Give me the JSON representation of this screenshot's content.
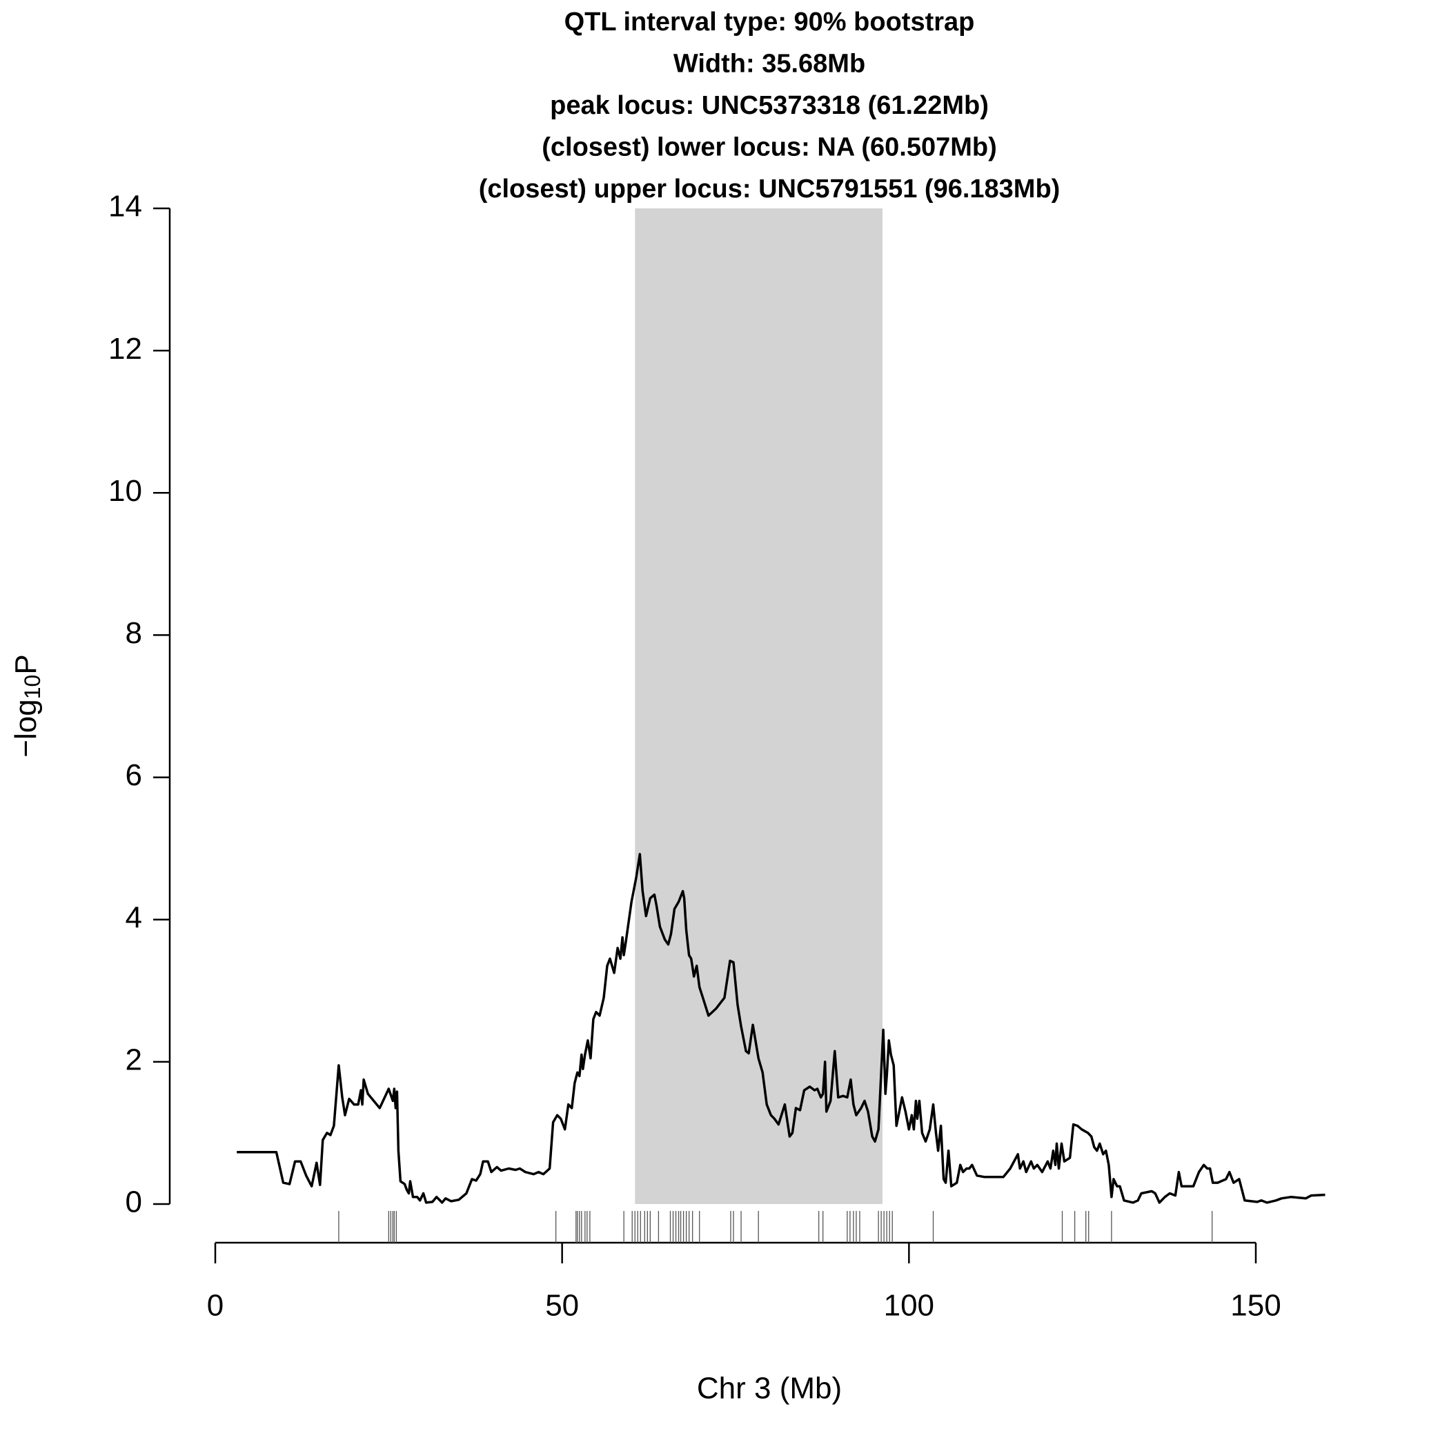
{
  "chart_data": {
    "type": "line",
    "title_lines": [
      "QTL interval type: 90% bootstrap",
      "Width: 35.68Mb",
      "peak locus: UNC5373318 (61.22Mb)",
      "(closest) lower locus: NA (60.507Mb)",
      "(closest) upper locus: UNC5791551 (96.183Mb)"
    ],
    "xlabel": "Chr 3 (Mb)",
    "ylabel": [
      "−log",
      "10",
      "P"
    ],
    "xlim": [
      0,
      150
    ],
    "ylim": [
      0,
      14
    ],
    "xticks": [
      0,
      50,
      100,
      150
    ],
    "yticks": [
      0,
      2,
      4,
      6,
      8,
      10,
      12,
      14
    ],
    "interval": [
      60.507,
      96.183
    ],
    "interval_color": "#d3d3d3",
    "color": "#000000",
    "x": [
      3.1,
      8.8,
      9.8,
      10.7,
      11.5,
      12.3,
      13.1,
      13.9,
      14.6,
      15.1,
      15.5,
      16.1,
      16.6,
      17.1,
      17.8,
      18.3,
      18.7,
      19.3,
      20.0,
      20.6,
      21.0,
      21.2,
      21.4,
      22.0,
      23.7,
      25.0,
      25.6,
      25.8,
      26.0,
      26.2,
      26.4,
      26.7,
      27.3,
      27.6,
      27.9,
      28.1,
      28.5,
      29.1,
      29.5,
      30.0,
      30.4,
      31.3,
      31.9,
      32.7,
      33.2,
      34.0,
      35.1,
      36.2,
      37.0,
      37.6,
      38.2,
      38.6,
      39.3,
      39.8,
      40.6,
      41.2,
      42.3,
      43.3,
      43.9,
      44.7,
      45.9,
      46.6,
      47.3,
      48.2,
      48.7,
      49.3,
      49.8,
      50.4,
      50.9,
      51.4,
      51.8,
      52.2,
      52.5,
      52.8,
      53.0,
      53.3,
      53.7,
      54.1,
      54.5,
      54.9,
      55.4,
      56.0,
      56.5,
      56.9,
      57.5,
      58.0,
      58.4,
      58.7,
      58.9,
      59.2,
      60.0,
      60.7,
      61.2,
      61.6,
      62.1,
      62.7,
      63.3,
      63.6,
      64.1,
      64.8,
      65.3,
      65.7,
      66.2,
      66.8,
      67.4,
      67.6,
      67.9,
      68.3,
      68.6,
      69.0,
      69.4,
      69.8,
      70.3,
      71.1,
      72.2,
      73.0,
      73.4,
      74.2,
      74.7,
      75.3,
      75.8,
      76.5,
      76.9,
      77.5,
      78.3,
      78.9,
      79.5,
      80.1,
      80.6,
      81.2,
      82.1,
      82.8,
      83.2,
      83.7,
      84.3,
      84.9,
      85.7,
      86.4,
      86.8,
      87.3,
      87.6,
      87.9,
      88.1,
      88.7,
      89.3,
      89.8,
      90.5,
      91.1,
      91.6,
      92.0,
      92.4,
      93.1,
      93.6,
      94.1,
      94.7,
      95.1,
      95.6,
      96.3,
      96.6,
      96.8,
      97.1,
      97.4,
      97.8,
      98.2,
      98.6,
      99.0,
      99.5,
      100.0,
      100.4,
      100.7,
      101.0,
      101.2,
      101.5,
      101.9,
      102.4,
      103.0,
      103.5,
      103.9,
      104.2,
      104.6,
      105.0,
      105.3,
      105.7,
      106.1,
      106.9,
      107.4,
      107.8,
      108.3,
      108.7,
      109.1,
      109.8,
      110.9,
      113.6,
      114.6,
      115.7,
      116.0,
      116.5,
      116.9,
      117.6,
      118.0,
      118.5,
      119.2,
      120.0,
      120.4,
      120.8,
      121.1,
      121.3,
      121.6,
      122.0,
      122.4,
      123.2,
      123.7,
      124.3,
      124.9,
      125.8,
      126.3,
      126.7,
      127.1,
      127.5,
      128.0,
      128.4,
      128.8,
      129.2,
      129.5,
      130.0,
      130.4,
      131.0,
      132.3,
      133.0,
      133.5,
      135.0,
      135.5,
      136.1,
      136.9,
      137.6,
      138.4,
      138.9,
      139.3,
      141.0,
      141.8,
      142.5,
      143.0,
      143.4,
      143.8,
      144.5,
      145.7,
      146.2,
      146.8,
      147.6,
      148.4,
      150.2,
      150.8,
      151.6,
      152.9,
      153.7,
      155.1,
      157.2,
      158.0,
      160.0
    ],
    "values": [
      0.73,
      0.73,
      0.3,
      0.28,
      0.6,
      0.6,
      0.4,
      0.25,
      0.58,
      0.27,
      0.9,
      1.0,
      0.97,
      1.1,
      1.95,
      1.5,
      1.25,
      1.48,
      1.4,
      1.4,
      1.6,
      1.4,
      1.75,
      1.55,
      1.35,
      1.62,
      1.45,
      1.62,
      1.35,
      1.58,
      0.75,
      0.32,
      0.28,
      0.2,
      0.15,
      0.32,
      0.1,
      0.1,
      0.05,
      0.15,
      0.02,
      0.03,
      0.1,
      0.02,
      0.08,
      0.04,
      0.06,
      0.15,
      0.35,
      0.33,
      0.42,
      0.6,
      0.6,
      0.45,
      0.52,
      0.47,
      0.5,
      0.48,
      0.5,
      0.45,
      0.42,
      0.45,
      0.42,
      0.5,
      1.15,
      1.25,
      1.2,
      1.05,
      1.4,
      1.35,
      1.7,
      1.85,
      1.8,
      2.1,
      1.9,
      2.1,
      2.3,
      2.05,
      2.6,
      2.7,
      2.65,
      2.9,
      3.35,
      3.45,
      3.25,
      3.6,
      3.45,
      3.75,
      3.5,
      3.7,
      4.25,
      4.6,
      4.92,
      4.4,
      4.05,
      4.3,
      4.35,
      4.2,
      3.9,
      3.72,
      3.65,
      3.8,
      4.15,
      4.25,
      4.4,
      4.3,
      3.85,
      3.5,
      3.45,
      3.2,
      3.35,
      3.05,
      2.9,
      2.65,
      2.75,
      2.85,
      2.9,
      3.42,
      3.4,
      2.8,
      2.5,
      2.15,
      2.12,
      2.52,
      2.05,
      1.85,
      1.4,
      1.25,
      1.2,
      1.12,
      1.4,
      0.95,
      1.0,
      1.35,
      1.32,
      1.6,
      1.65,
      1.6,
      1.62,
      1.5,
      1.55,
      2.0,
      1.3,
      1.45,
      2.15,
      1.5,
      1.52,
      1.5,
      1.75,
      1.4,
      1.25,
      1.35,
      1.45,
      1.3,
      0.95,
      0.88,
      1.05,
      2.45,
      1.55,
      1.8,
      2.3,
      2.1,
      1.95,
      1.1,
      1.3,
      1.5,
      1.3,
      1.05,
      1.25,
      1.05,
      1.45,
      1.2,
      1.45,
      1.0,
      0.88,
      1.05,
      1.4,
      1.0,
      0.75,
      1.1,
      0.35,
      0.3,
      0.75,
      0.25,
      0.3,
      0.55,
      0.45,
      0.5,
      0.5,
      0.55,
      0.4,
      0.38,
      0.38,
      0.5,
      0.7,
      0.5,
      0.6,
      0.45,
      0.6,
      0.5,
      0.55,
      0.45,
      0.6,
      0.5,
      0.75,
      0.55,
      0.85,
      0.5,
      0.85,
      0.6,
      0.65,
      1.12,
      1.1,
      1.05,
      1.0,
      0.95,
      0.8,
      0.75,
      0.85,
      0.7,
      0.75,
      0.55,
      0.1,
      0.35,
      0.25,
      0.25,
      0.05,
      0.02,
      0.05,
      0.15,
      0.18,
      0.15,
      0.02,
      0.1,
      0.15,
      0.12,
      0.45,
      0.25,
      0.25,
      0.45,
      0.55,
      0.5,
      0.5,
      0.3,
      0.3,
      0.35,
      0.45,
      0.3,
      0.35,
      0.05,
      0.03,
      0.05,
      0.02,
      0.05,
      0.08,
      0.1,
      0.08,
      0.12,
      0.13
    ],
    "markers": [
      17.8,
      25.0,
      25.3,
      25.6,
      25.8,
      26.1,
      49.1,
      52.0,
      52.2,
      52.5,
      52.8,
      53.3,
      53.6,
      54.0,
      58.9,
      60.1,
      60.5,
      60.9,
      61.3,
      61.9,
      62.3,
      62.7,
      63.9,
      65.6,
      66.0,
      66.4,
      66.8,
      67.1,
      67.5,
      67.9,
      68.3,
      68.8,
      69.8,
      74.3,
      74.7,
      75.8,
      78.3,
      87.0,
      87.6,
      91.1,
      91.5,
      92.0,
      92.4,
      92.9,
      95.6,
      96.0,
      96.4,
      96.8,
      97.2,
      97.6,
      103.5,
      122.1,
      123.9,
      125.5,
      125.9,
      129.2,
      143.7
    ]
  }
}
